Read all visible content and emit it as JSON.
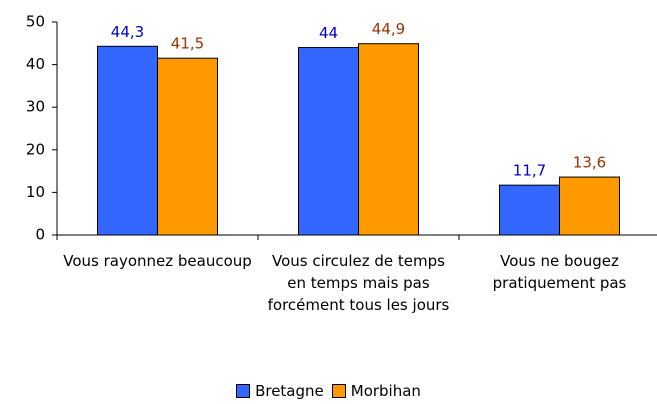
{
  "chart_data": {
    "type": "bar",
    "categories": [
      "Vous rayonnez beaucoup",
      "Vous circulez de temps en temps mais pas forcément tous les jours",
      "Vous ne bougez pratiquement pas"
    ],
    "series": [
      {
        "name": "Bretagne",
        "color": "#3366ff",
        "label_color": "#0000cc",
        "values": [
          44.3,
          44,
          11.7
        ],
        "value_labels": [
          "44,3",
          "44",
          "11,7"
        ]
      },
      {
        "name": "Morbihan",
        "color": "#ff9900",
        "label_color": "#993300",
        "values": [
          41.5,
          44.9,
          13.6
        ],
        "value_labels": [
          "41,5",
          "44,9",
          "13,6"
        ]
      }
    ],
    "ylim": [
      0,
      50
    ],
    "yticks": [
      0,
      10,
      20,
      30,
      40,
      50
    ],
    "grid": false,
    "legend": "bottom"
  }
}
